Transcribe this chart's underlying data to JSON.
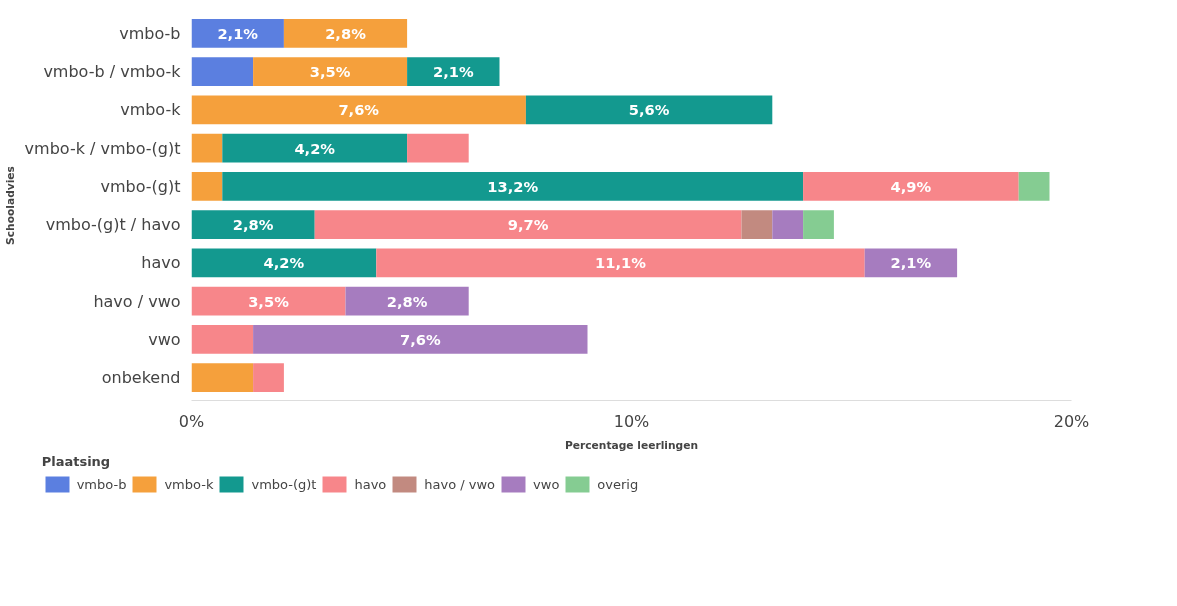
{
  "chart_data": {
    "type": "bar",
    "orientation": "horizontal",
    "stacked": true,
    "xlabel": "Percentage leerlingen",
    "ylabel": "Schooladvies",
    "legend_title": "Plaatsing",
    "legend": "bottom",
    "grid": false,
    "categories": [
      "vmbo-b",
      "vmbo-b / vmbo-k",
      "vmbo-k",
      "vmbo-k / vmbo-(g)t",
      "vmbo-(g)t",
      "vmbo-(g)t / havo",
      "havo",
      "havo / vwo",
      "vwo",
      "onbekend"
    ],
    "xlim": [
      0,
      20
    ],
    "xticks": [
      {
        "value": 0,
        "label": "0%"
      },
      {
        "value": 10,
        "label": "10%"
      },
      {
        "value": 20,
        "label": "20%"
      }
    ],
    "series": [
      {
        "name": "vmbo-b",
        "color": "#5b7fe0",
        "values": [
          2.1,
          1.4,
          null,
          null,
          null,
          null,
          null,
          null,
          null,
          null
        ],
        "value_labels": [
          "2,1%",
          null,
          null,
          null,
          null,
          null,
          null,
          null,
          null,
          null
        ]
      },
      {
        "name": "vmbo-k",
        "color": "#f5a03c",
        "values": [
          2.8,
          3.5,
          7.6,
          0.7,
          0.7,
          null,
          null,
          null,
          null,
          1.4
        ],
        "value_labels": [
          "2,8%",
          "3,5%",
          "7,6%",
          null,
          null,
          null,
          null,
          null,
          null,
          null
        ]
      },
      {
        "name": "vmbo-(g)t",
        "color": "#13998f",
        "values": [
          null,
          2.1,
          5.6,
          4.2,
          13.2,
          2.8,
          4.2,
          null,
          null,
          null
        ],
        "value_labels": [
          null,
          "2,1%",
          "5,6%",
          "4,2%",
          "13,2%",
          "2,8%",
          "4,2%",
          null,
          null,
          null
        ]
      },
      {
        "name": "havo",
        "color": "#f7868a",
        "values": [
          null,
          null,
          null,
          1.4,
          4.9,
          9.7,
          11.1,
          3.5,
          1.4,
          0.7
        ],
        "value_labels": [
          null,
          null,
          null,
          null,
          "4,9%",
          "9,7%",
          "11,1%",
          "3,5%",
          null,
          null
        ]
      },
      {
        "name": "havo / vwo",
        "color": "#c28a80",
        "values": [
          null,
          null,
          null,
          null,
          null,
          0.7,
          null,
          null,
          null,
          null
        ]
      },
      {
        "name": "vwo",
        "color": "#a67cbf",
        "values": [
          null,
          null,
          null,
          null,
          null,
          0.7,
          2.1,
          2.8,
          7.6,
          null
        ],
        "value_labels": [
          null,
          null,
          null,
          null,
          null,
          null,
          "2,1%",
          "2,8%",
          "7,6%",
          null
        ]
      },
      {
        "name": "overig",
        "color": "#85cc92",
        "values": [
          null,
          null,
          null,
          null,
          0.7,
          0.7,
          null,
          null,
          null,
          null
        ]
      }
    ]
  }
}
